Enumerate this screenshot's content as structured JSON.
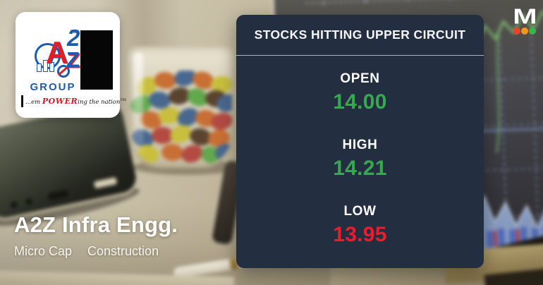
{
  "brand_card": {
    "letter_a": "A",
    "letter_2": "2",
    "letter_z": "Z",
    "group": "GROUP",
    "tm": "TM",
    "tagline": {
      "prefix": "...em ",
      "power": "POWER",
      "suffix": "ing the nation",
      "tm": "TM"
    }
  },
  "panel": {
    "title": "STOCKS HITTING UPPER CIRCUIT",
    "rows": [
      {
        "label": "OPEN",
        "value": "14.00",
        "trend": "up"
      },
      {
        "label": "HIGH",
        "value": "14.21",
        "trend": "up"
      },
      {
        "label": "LOW",
        "value": "13.95",
        "trend": "down"
      }
    ]
  },
  "stock": {
    "name": "A2Z Infra Engg.",
    "market_cap": "Micro Cap",
    "sector": "Construction"
  },
  "watermark": {
    "letter": "M",
    "dot_colors": [
      "#ef4123",
      "#f7941d",
      "#39b54a"
    ]
  },
  "colors": {
    "panel_bg": "#232e41",
    "positive": "#35a94f",
    "negative": "#ea1d2c",
    "divider": "#d2dbe5"
  }
}
